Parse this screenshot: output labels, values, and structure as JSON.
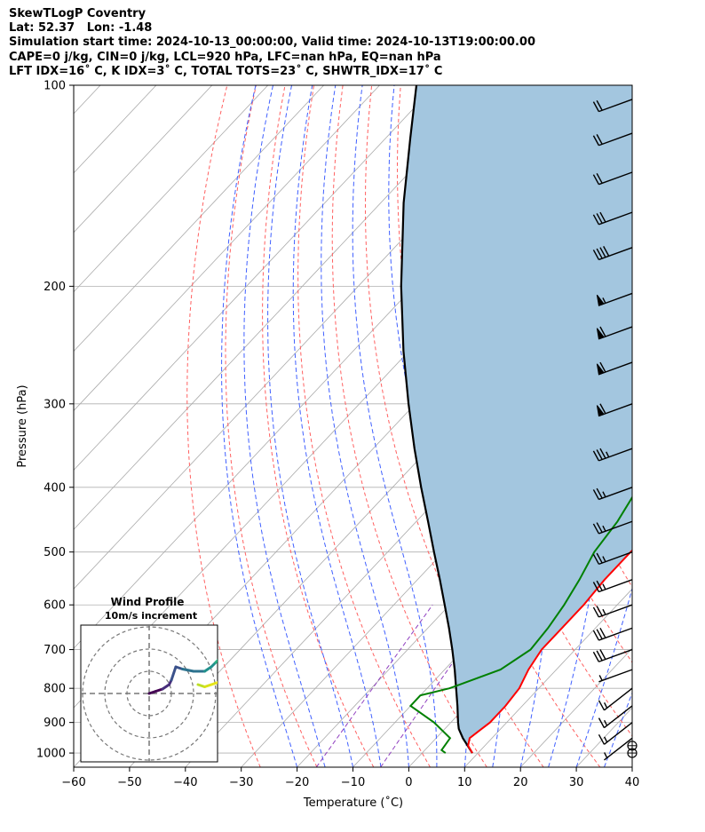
{
  "header": {
    "line1": "SkewTLogP Coventry",
    "line2": "Lat: 52.37   Lon: -1.48",
    "line3": "Simulation start time: 2024-10-13_00:00:00, Valid time: 2024-10-13T19:00:00.00",
    "line4": "CAPE=0 j/kg, CIN=0 j/kg, LCL=920 hPa, LFC=nan hPa, EQ=nan hPa",
    "line5": "LFT IDX=16˚ C, K IDX=3˚ C, TOTAL TOTS=23˚ C, SHWTR_IDX=17˚ C"
  },
  "chart_data": {
    "type": "line",
    "xlabel": "Temperature ($^\\circ$C)",
    "ylabel": "Pressure (hPa)",
    "xlabel_text": "Temperature (˚C)",
    "ylabel_text": "Pressure (hPa)",
    "xlim": [
      -60,
      40
    ],
    "ylim": [
      1050,
      100
    ],
    "y_scale": "log",
    "xticks": [
      -60,
      -50,
      -40,
      -30,
      -20,
      -10,
      0,
      10,
      20,
      30,
      40
    ],
    "yticks": [
      1000,
      900,
      800,
      700,
      600,
      500,
      400,
      300,
      200,
      100
    ],
    "grid": true,
    "colors": {
      "temperature": "#ff0000",
      "dewpoint": "#008000",
      "parcel": "#000000",
      "cape_fill": "#a3c6df",
      "dry_adiabat": "#ff6060",
      "moist_adiabat": "#4060ff",
      "mixing_ratio": "#9040c0",
      "isotherm": "#aaaaaa"
    },
    "series": [
      {
        "key": "temperature",
        "points": [
          [
            1000,
            9
          ],
          [
            975,
            7
          ],
          [
            950,
            6
          ],
          [
            925,
            6.5
          ],
          [
            900,
            7
          ],
          [
            850,
            7
          ],
          [
            800,
            6.5
          ],
          [
            750,
            5
          ],
          [
            700,
            4
          ],
          [
            650,
            4
          ],
          [
            600,
            4
          ],
          [
            550,
            3.5
          ],
          [
            500,
            3.5
          ],
          [
            450,
            4
          ],
          [
            400,
            3
          ],
          [
            350,
            0
          ],
          [
            300,
            -3
          ],
          [
            260,
            -6
          ],
          [
            225,
            -9
          ],
          [
            200,
            -11
          ],
          [
            175,
            -11
          ],
          [
            150,
            -13
          ],
          [
            125,
            -15
          ],
          [
            115,
            -16
          ],
          [
            100,
            -17
          ]
        ]
      },
      {
        "key": "dewpoint",
        "points": [
          [
            1000,
            4.2
          ],
          [
            990,
            3
          ],
          [
            950,
            2.5
          ],
          [
            900,
            -3
          ],
          [
            850,
            -10
          ],
          [
            820,
            -10
          ],
          [
            800,
            -6
          ],
          [
            750,
            0
          ],
          [
            700,
            2
          ],
          [
            650,
            1.5
          ],
          [
            600,
            0.5
          ],
          [
            550,
            -1
          ],
          [
            500,
            -3
          ],
          [
            450,
            -4
          ],
          [
            400,
            -6
          ],
          [
            350,
            -10
          ],
          [
            300,
            -14
          ],
          [
            270,
            -17
          ],
          [
            250,
            -19
          ],
          [
            230,
            -20
          ],
          [
            210,
            -21
          ],
          [
            200,
            -23
          ],
          [
            180,
            -31
          ],
          [
            170,
            -32
          ],
          [
            160,
            -31
          ],
          [
            140,
            -30
          ],
          [
            130,
            -29
          ],
          [
            120,
            -28
          ],
          [
            100,
            -27
          ]
        ]
      },
      {
        "key": "parcel",
        "points": [
          [
            1000,
            9.0
          ],
          [
            950,
            4.8
          ],
          [
            920,
            2.5
          ],
          [
            900,
            1.3
          ],
          [
            850,
            -1.6
          ],
          [
            800,
            -4.8
          ],
          [
            750,
            -8.2
          ],
          [
            700,
            -12.0
          ],
          [
            650,
            -16.2
          ],
          [
            600,
            -20.9
          ],
          [
            550,
            -26.0
          ],
          [
            500,
            -31.7
          ],
          [
            450,
            -37.9
          ],
          [
            400,
            -44.9
          ],
          [
            350,
            -52.6
          ],
          [
            300,
            -61.2
          ],
          [
            250,
            -71.0
          ],
          [
            200,
            -82.3
          ],
          [
            150,
            -95.9
          ],
          [
            120,
            -105.6
          ],
          [
            100,
            -113.4
          ]
        ]
      }
    ],
    "wind_barbs": [
      {
        "p": 1000,
        "speed_kt": 0
      },
      {
        "p": 975,
        "speed_kt": 0
      },
      {
        "p": 950,
        "speed_kt": 5
      },
      {
        "p": 900,
        "speed_kt": 15
      },
      {
        "p": 850,
        "speed_kt": 15
      },
      {
        "p": 800,
        "speed_kt": 15
      },
      {
        "p": 750,
        "speed_kt": 5
      },
      {
        "p": 700,
        "speed_kt": 30
      },
      {
        "p": 650,
        "speed_kt": 30
      },
      {
        "p": 600,
        "speed_kt": 25
      },
      {
        "p": 550,
        "speed_kt": 25
      },
      {
        "p": 500,
        "speed_kt": 25
      },
      {
        "p": 450,
        "speed_kt": 25
      },
      {
        "p": 400,
        "speed_kt": 25
      },
      {
        "p": 350,
        "speed_kt": 35
      },
      {
        "p": 300,
        "speed_kt": 60
      },
      {
        "p": 260,
        "speed_kt": 60
      },
      {
        "p": 230,
        "speed_kt": 60
      },
      {
        "p": 205,
        "speed_kt": 55
      },
      {
        "p": 175,
        "speed_kt": 40
      },
      {
        "p": 155,
        "speed_kt": 30
      },
      {
        "p": 135,
        "speed_kt": 20
      },
      {
        "p": 118,
        "speed_kt": 20
      },
      {
        "p": 105,
        "speed_kt": 20
      }
    ],
    "inset": {
      "title": "Wind Profile",
      "subtitle": "10m/s increment",
      "hodograph_uv": [
        [
          0,
          0
        ],
        [
          3,
          1
        ],
        [
          6,
          2
        ],
        [
          9,
          4
        ],
        [
          10,
          6
        ],
        [
          12,
          12
        ],
        [
          15,
          11
        ],
        [
          20,
          10
        ],
        [
          25,
          10
        ],
        [
          28,
          12
        ],
        [
          30,
          14
        ],
        [
          33,
          17
        ]
      ],
      "hodograph_tail_uv": [
        [
          22,
          4
        ],
        [
          25,
          3
        ],
        [
          28,
          4
        ],
        [
          31,
          5
        ],
        [
          33,
          6
        ]
      ]
    }
  }
}
